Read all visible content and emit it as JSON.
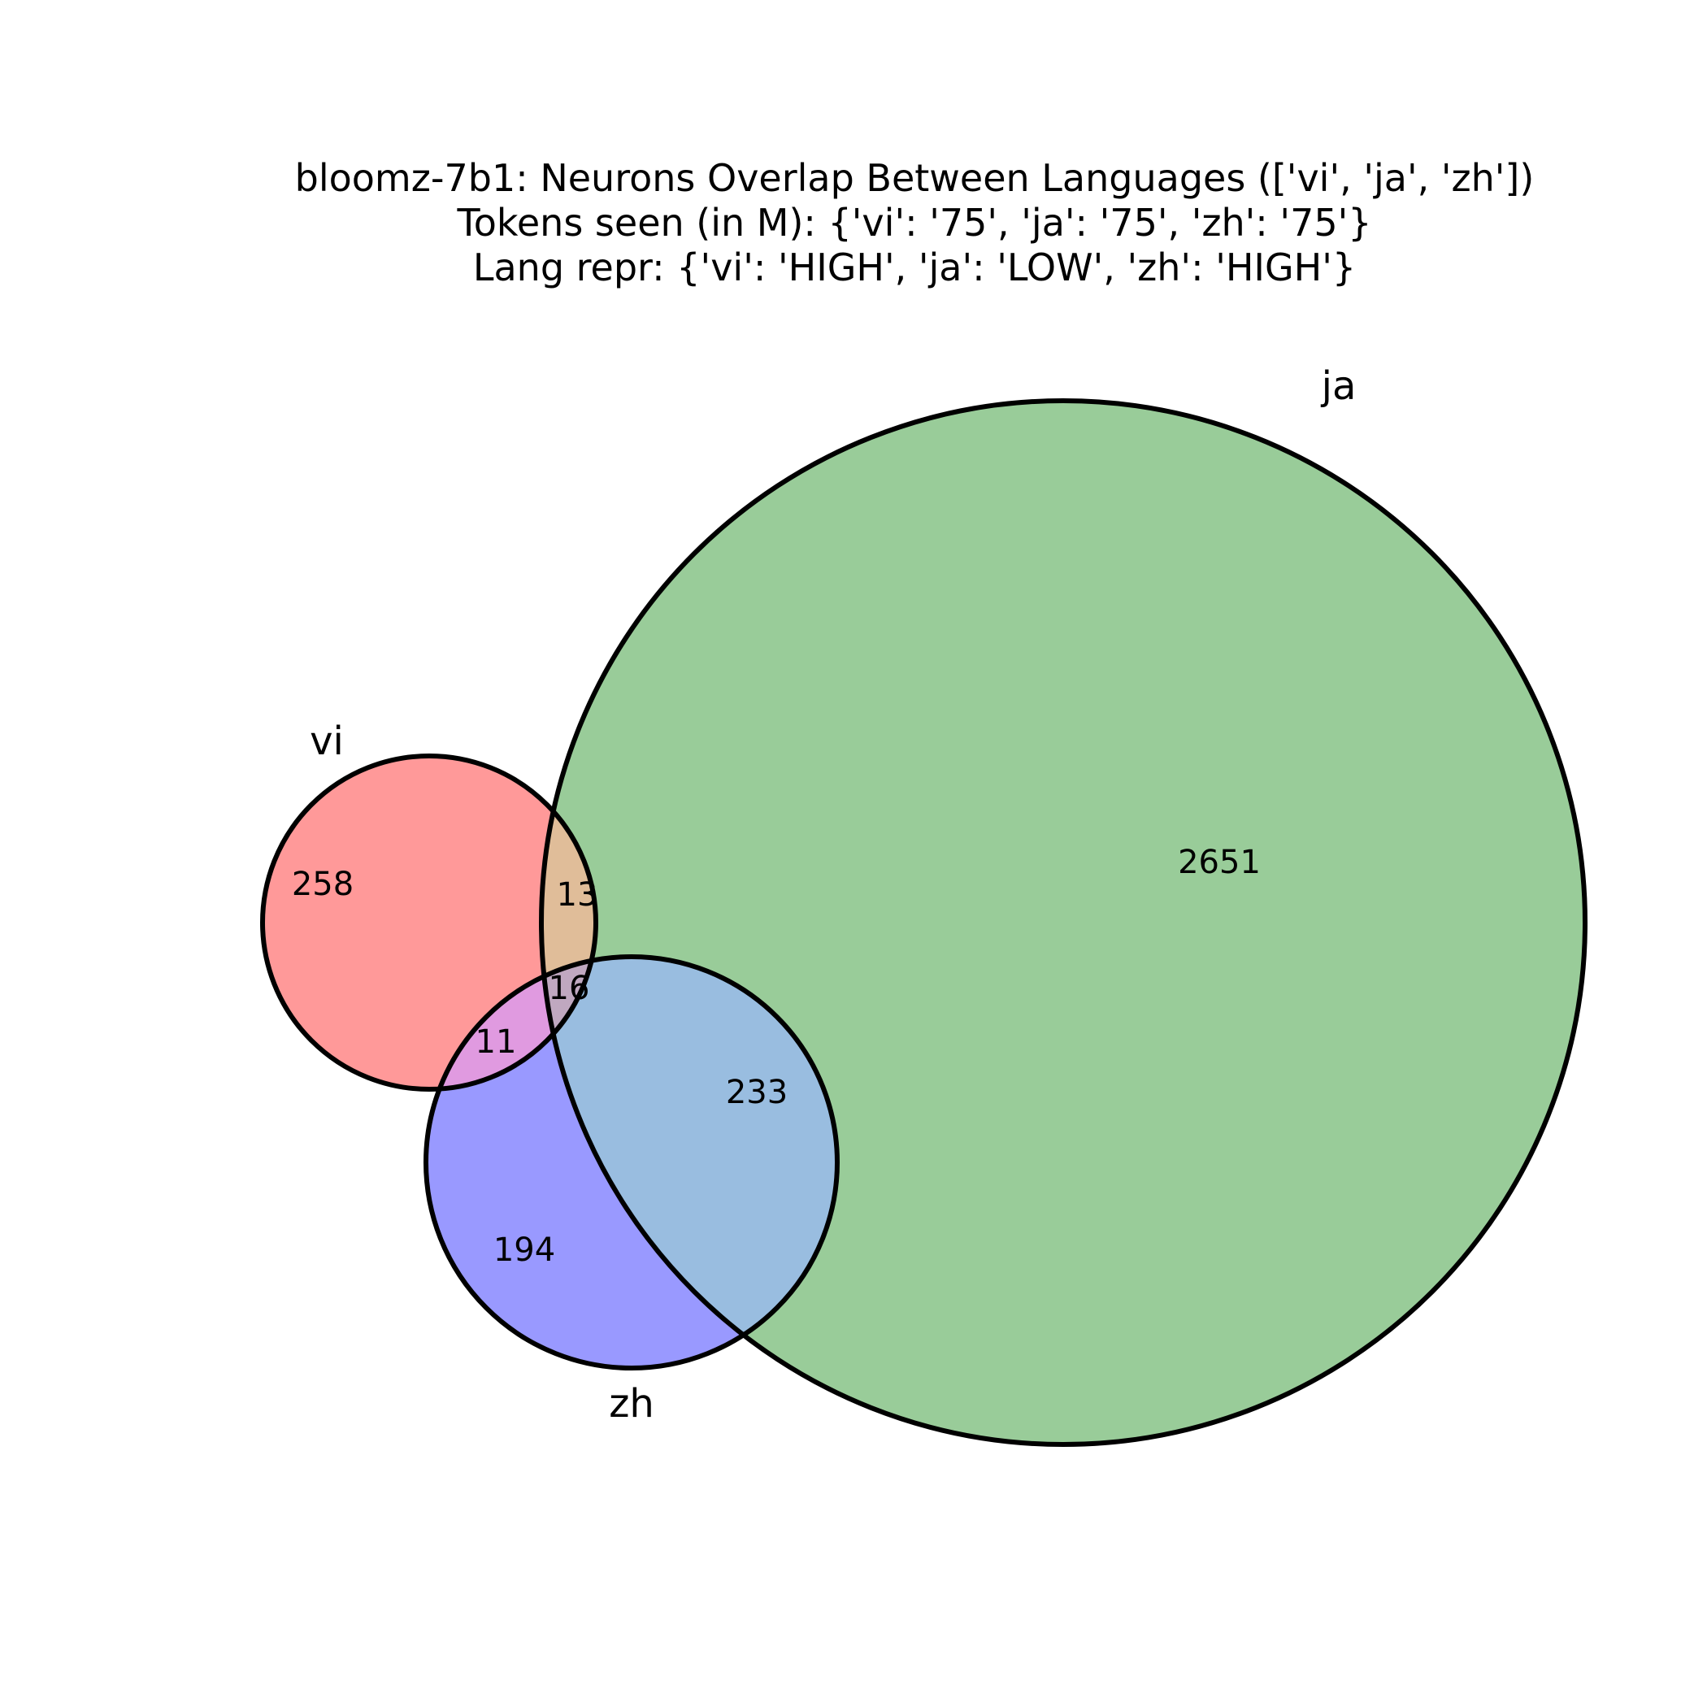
{
  "figure": {
    "title_lines": [
      "bloomz-7b1: Neurons Overlap Between Languages (['vi', 'ja', 'zh'])",
      "Tokens seen (in M): {'vi': '75', 'ja': '75', 'zh': '75'}",
      "Lang repr: {'vi': 'HIGH', 'ja': 'LOW', 'zh': 'HIGH'}"
    ]
  },
  "venn": {
    "type": "venn3",
    "sets": [
      {
        "key": "vi",
        "label": "vi",
        "color": "#ff9999"
      },
      {
        "key": "ja",
        "label": "ja",
        "color": "#99cc99"
      },
      {
        "key": "zh",
        "label": "zh",
        "color": "#9999ff"
      }
    ],
    "regions": [
      {
        "key": "vi_only",
        "value": "258",
        "color": "#ff9999"
      },
      {
        "key": "ja_only",
        "value": "2651",
        "color": "#99cc99"
      },
      {
        "key": "zh_only",
        "value": "194",
        "color": "#9999ff"
      },
      {
        "key": "vi_ja",
        "value": "13",
        "color": "#e0bd99"
      },
      {
        "key": "vi_zh",
        "value": "11",
        "color": "#e09ae0"
      },
      {
        "key": "ja_zh",
        "value": "233",
        "color": "#99bde0"
      },
      {
        "key": "vi_ja_zh",
        "value": "16",
        "color": "#c0a8c0"
      }
    ]
  }
}
